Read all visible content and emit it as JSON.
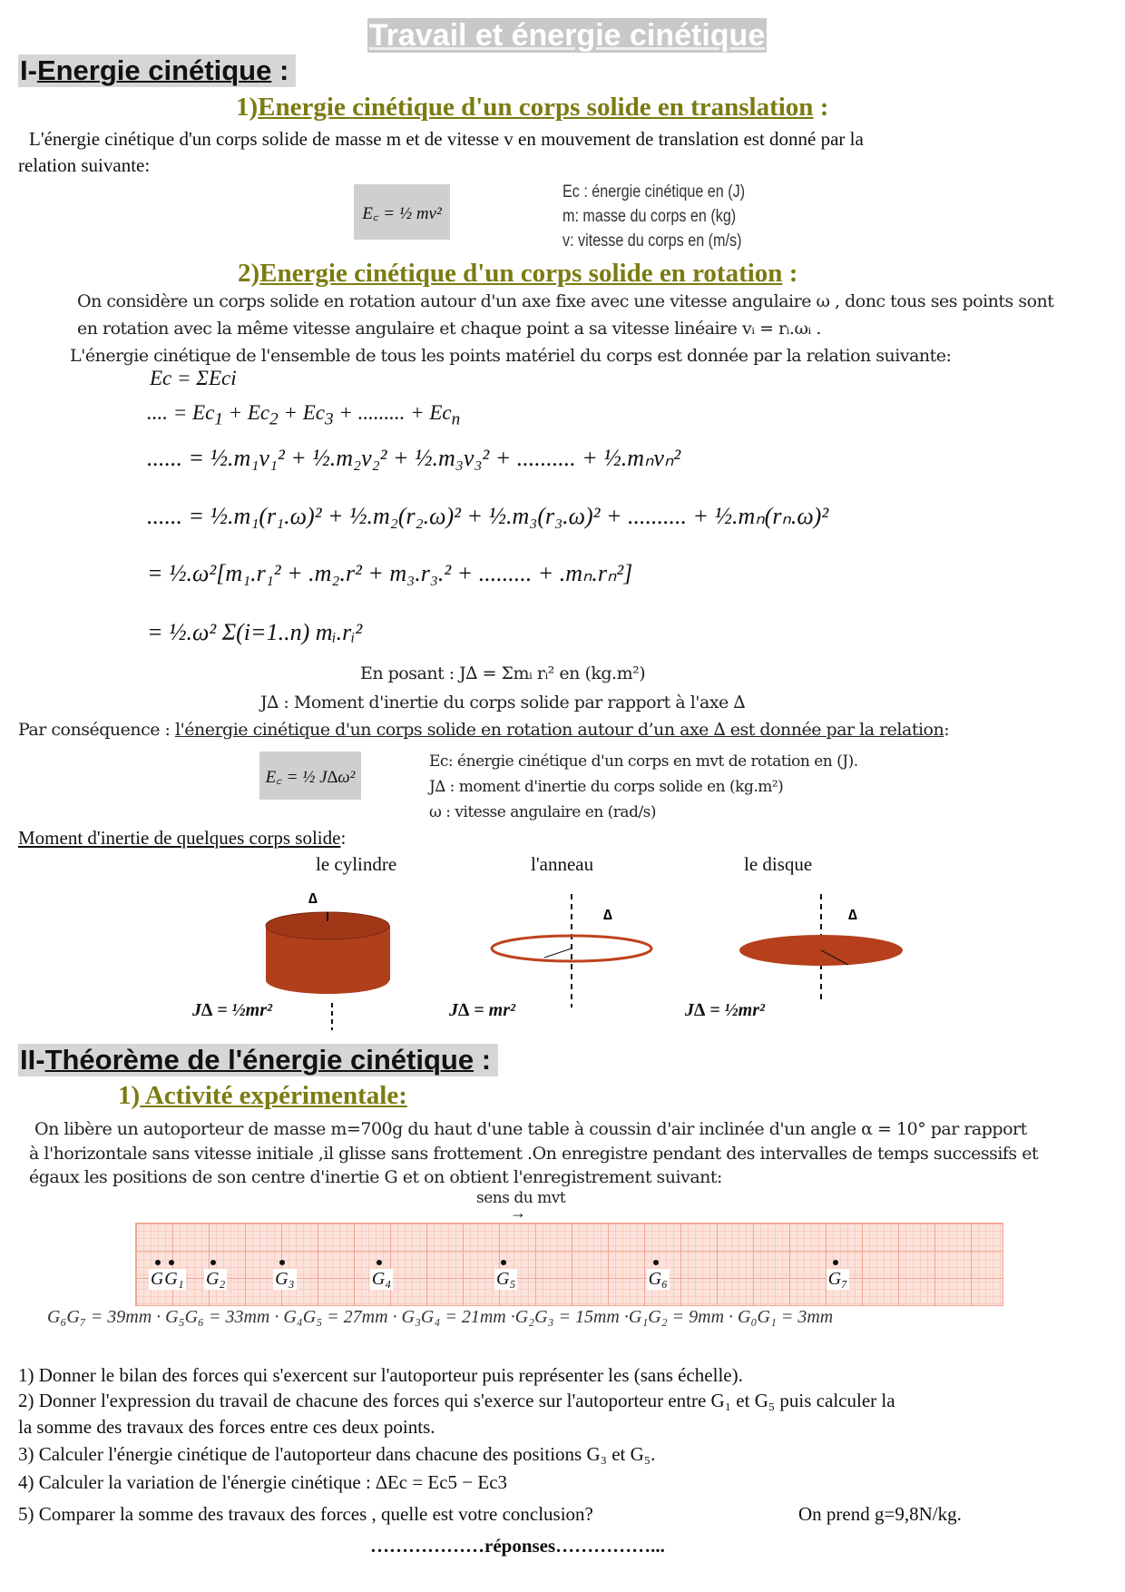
{
  "title": "Travail et  énergie cinétique",
  "s1": {
    "num": "I-",
    "heading": "Energie cinétique",
    " colon": ":",
    "sub1": {
      "num": "1)",
      "heading": "Energie cinétique d'un corps solide en translation",
      "colon": " :"
    },
    "p1": "L'énergie cinétique d'un  corps solide de masse m et de vitesse  v en mouvement de translation est donné par la",
    "p2": "relation  suivante:",
    "formula1": "E꜀ = ½ mv²",
    "legend1": [
      "Ec : énergie cinétique en (J)",
      "m: masse du corps en (kg)",
      "v: vitesse du corps en (m/s)"
    ],
    "sub2": {
      "num": "2)",
      "heading": "Energie cinétique d'un corps solide en rotation",
      "colon": " :"
    },
    "p3": "On considère un corps solide en rotation autour d'un axe fixe avec une vitesse angulaire ω  , donc tous ses points sont",
    "p4": "en rotation avec la même vitesse angulaire et chaque point a sa vitesse linéaire vᵢ = rᵢ.ωᵢ .",
    "p5": "L'énergie cinétique de l'ensemble de tous les points matériel du corps est donnée par la relation suivante:",
    "eq": [
      "Ec = ΣEci",
      ".... = Ec₁ + Ec₂ + Ec₃ + ......... + Ecₙ",
      "...... = ½.m₁v₁² + ½.m₂v₂² + ½.m₃v₃² + .......... + ½.mₙvₙ²",
      "...... = ½.m₁(r₁.ω)² + ½.m₂(r₂.ω)² + ½.m₃(r₃.ω)² + .......... + ½.mₙ(rₙ.ω)²",
      "= ½.ω²[m₁.r₁² + .m₂.r² + m₃.r₃.² + ......... + .mₙ.rₙ²]",
      "= ½.ω² Σ(i=1..n) mᵢ.rᵢ²"
    ],
    "posant": "En posant : J∆ = Σmᵢ rᵢ²  en (kg.m²)",
    "jdef": "J∆ :  Moment d'inertie du corps solide par rapport à l'axe ∆",
    "consequence_prefix": "Par conséquence : ",
    "consequence": "l'énergie cinétique d'un corps solide en rotation  autour d’un axe ∆ est donnée par la relation",
    "consequence_end": ":",
    "formula2": "E꜀ = ½ J∆ω²",
    "legend2": [
      "Ec: énergie cinétique d'un corps en mvt de rotation en (J).",
      "J∆ : moment d'inertie du corps solide en (kg.m²)",
      "ω : vitesse angulaire  en (rad/s)"
    ],
    "moment_heading": "Moment d'inertie de quelques corps solide",
    "moment_colon": ":",
    "bodies": [
      {
        "label": "le cylindre",
        "formula": "J∆ = ½mr²",
        "color": "#b0401c"
      },
      {
        "label": "l'anneau",
        "formula": "J∆ = mr²",
        "color": "#c0421d"
      },
      {
        "label": "le disque",
        "formula": "J∆ = ½mr²",
        "color": "#b5401b"
      }
    ],
    "axis_label": "∆"
  },
  "s2": {
    "num": "II-",
    "heading": "Théorème de l'énergie cinétique",
    "colon": " :",
    "sub1": {
      "num": "1)",
      "heading": " Activité expérimentale:"
    },
    "p1": "On libère un autoporteur de masse m=700g du haut d'une table à coussin d'air inclinée d'un angle α = 10°  par rapport",
    "p2": "à l'horizontale sans vitesse initiale ,il glisse sans frottement .On enregistre pendant des intervalles de temps successifs et",
    "p3": "égaux les positions de son centre d'inertie G et on obtient  l'enregistrement suivant:",
    "direction": "sens du mvt",
    "points": [
      "G₀",
      "G₁",
      "G₂",
      "G₃",
      "G₄",
      "G₅",
      "G₆",
      "G₇"
    ],
    "positions_mm": [
      0,
      3,
      12,
      27,
      48,
      75,
      108,
      147
    ],
    "distances": "G₆G₇ = 39mm · G₅G₆ = 33mm · G₄G₅ = 27mm · G₃G₄ = 21mm ·G₂G₃ = 15mm ·G₁G₂ = 9mm · G₀G₁ = 3mm",
    "questions": [
      "1) Donner le bilan des forces qui s'exercent sur l'autoporteur puis représenter les (sans échelle).",
      "2) Donner l'expression du travail de chacune des forces qui s'exerce sur l'autoporteur entre G₁ et G₅ puis calculer la",
      "la somme des travaux des forces entre ces deux points.",
      "3) Calculer l'énergie cinétique de l'autoporteur dans chacune des positions G₃ et G₅.",
      "4) Calculer la variation de l'énergie cinétique  :  ∆Ec = Ec5 − Ec3",
      "5) Comparer la somme des travaux des forces  , quelle est votre conclusion?"
    ],
    "given": "On prend   g=9,8N/kg.",
    "answers": "………………réponses……………..."
  },
  "colors": {
    "heading_olive": "#7b7b12",
    "tape": "#fbe3dc",
    "grid": "#f1a595"
  }
}
